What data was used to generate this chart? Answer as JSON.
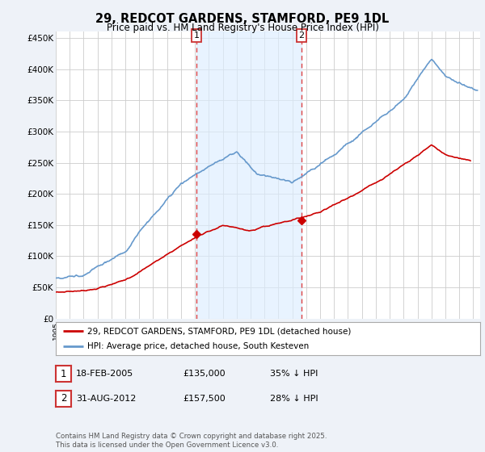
{
  "title": "29, REDCOT GARDENS, STAMFORD, PE9 1DL",
  "subtitle": "Price paid vs. HM Land Registry's House Price Index (HPI)",
  "background_color": "#eef2f8",
  "plot_bg_color": "#ffffff",
  "ylim": [
    0,
    460000
  ],
  "yticks": [
    0,
    50000,
    100000,
    150000,
    200000,
    250000,
    300000,
    350000,
    400000,
    450000
  ],
  "ytick_labels": [
    "£0",
    "£50K",
    "£100K",
    "£150K",
    "£200K",
    "£250K",
    "£300K",
    "£350K",
    "£400K",
    "£450K"
  ],
  "sale1_date": "18-FEB-2005",
  "sale1_price": 135000,
  "sale1_price_str": "£135,000",
  "sale1_pct": "35% ↓ HPI",
  "sale2_date": "31-AUG-2012",
  "sale2_price": 157500,
  "sale2_price_str": "£157,500",
  "sale2_pct": "28% ↓ HPI",
  "legend_label_red": "29, REDCOT GARDENS, STAMFORD, PE9 1DL (detached house)",
  "legend_label_blue": "HPI: Average price, detached house, South Kesteven",
  "footer": "Contains HM Land Registry data © Crown copyright and database right 2025.\nThis data is licensed under the Open Government Licence v3.0.",
  "sale1_x": 2005.12,
  "sale2_x": 2012.67,
  "red_color": "#cc0000",
  "blue_color": "#6699cc",
  "shade_color": "#ddeeff",
  "vline_color": "#dd4444",
  "grid_color": "#cccccc",
  "box_edge_color": "#cc3333"
}
